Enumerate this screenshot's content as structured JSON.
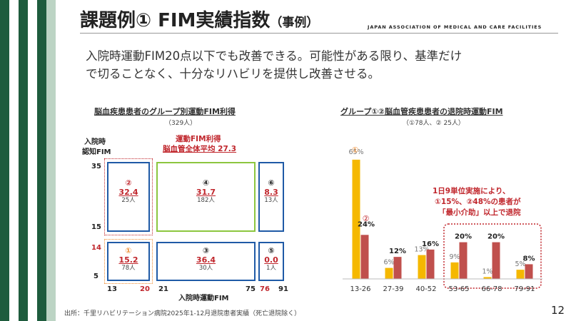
{
  "header": {
    "title": "課題例① FIM実績指数",
    "title_suffix": "（事例）",
    "association": "JAPAN ASSOCIATION OF MEDICAL AND CARE FACILITIES"
  },
  "lead": {
    "line1": "入院時運動FIM20点以下でも改善できる。可能性がある限り、基準だけ",
    "line2": "で切ることなく、十分なリハビリを提供し改善させる。"
  },
  "left_panel": {
    "title": "脳血疾患患者のグループ別運動FIM利得",
    "subtitle": "（329人）",
    "y_axis_label_1": "入院時",
    "y_axis_label_2": "認知FIM",
    "avg_label_1": "運動FIM利得",
    "avg_label_2": "脳血管全体平均 27.3",
    "y_ticks": [
      "35",
      "15",
      "14",
      "5"
    ],
    "x_ticks": [
      "13",
      "20",
      "21",
      "75",
      "76",
      "91"
    ],
    "x_axis_label": "入院時運動FIM",
    "groups": [
      {
        "id": "②",
        "value": "32.4",
        "people": "25人"
      },
      {
        "id": "④",
        "value": "31.7",
        "people": "182人"
      },
      {
        "id": "⑥",
        "value": "8.3",
        "people": "13人"
      },
      {
        "id": "①",
        "value": "15.2",
        "people": "78人"
      },
      {
        "id": "③",
        "value": "36.4",
        "people": "30人"
      },
      {
        "id": "⑤",
        "value": "0.0",
        "people": "1人"
      }
    ]
  },
  "right_panel": {
    "title": "グループ①②脳血管疾患患者の退院時運動FIM",
    "subtitle": "（①78人、② 25人）",
    "annotation_line1": "1日9単位実施により、",
    "annotation_line2": "①15%、②48%の患者が",
    "annotation_line3": "「最小介助」以上で退院",
    "marker_1": "①",
    "marker_2": "②"
  },
  "chart_data": {
    "type": "bar",
    "categories": [
      "13-26",
      "27-39",
      "40-52",
      "53-65",
      "66-78",
      "79-91"
    ],
    "series": [
      {
        "name": "①",
        "values": [
          65,
          6,
          13,
          9,
          1,
          5
        ],
        "labels": [
          "65%",
          "6%",
          "13%",
          "9%",
          "1%",
          "5%"
        ],
        "color": "#f5b800"
      },
      {
        "name": "②",
        "values": [
          24,
          12,
          16,
          20,
          20,
          8
        ],
        "labels": [
          "24%",
          "12%",
          "16%",
          "20%",
          "20%",
          "8%"
        ],
        "color": "#c0504d"
      }
    ],
    "ylim": [
      0,
      70
    ],
    "highlight_categories": [
      "53-65",
      "66-78",
      "79-91"
    ]
  },
  "footer": {
    "source": "出所：千里リハビリテーション病院2025年1-12月退院患者実績（死亡退院除く）",
    "page_number": "12"
  },
  "colors": {
    "sidebar_dark": "#1e5c3d",
    "sidebar_light": "#bcd4c4",
    "box_blue": "#1f5aa6",
    "box_green": "#8cc63f",
    "accent_red": "#c0262c",
    "accent_orange": "#ee8a2e"
  }
}
